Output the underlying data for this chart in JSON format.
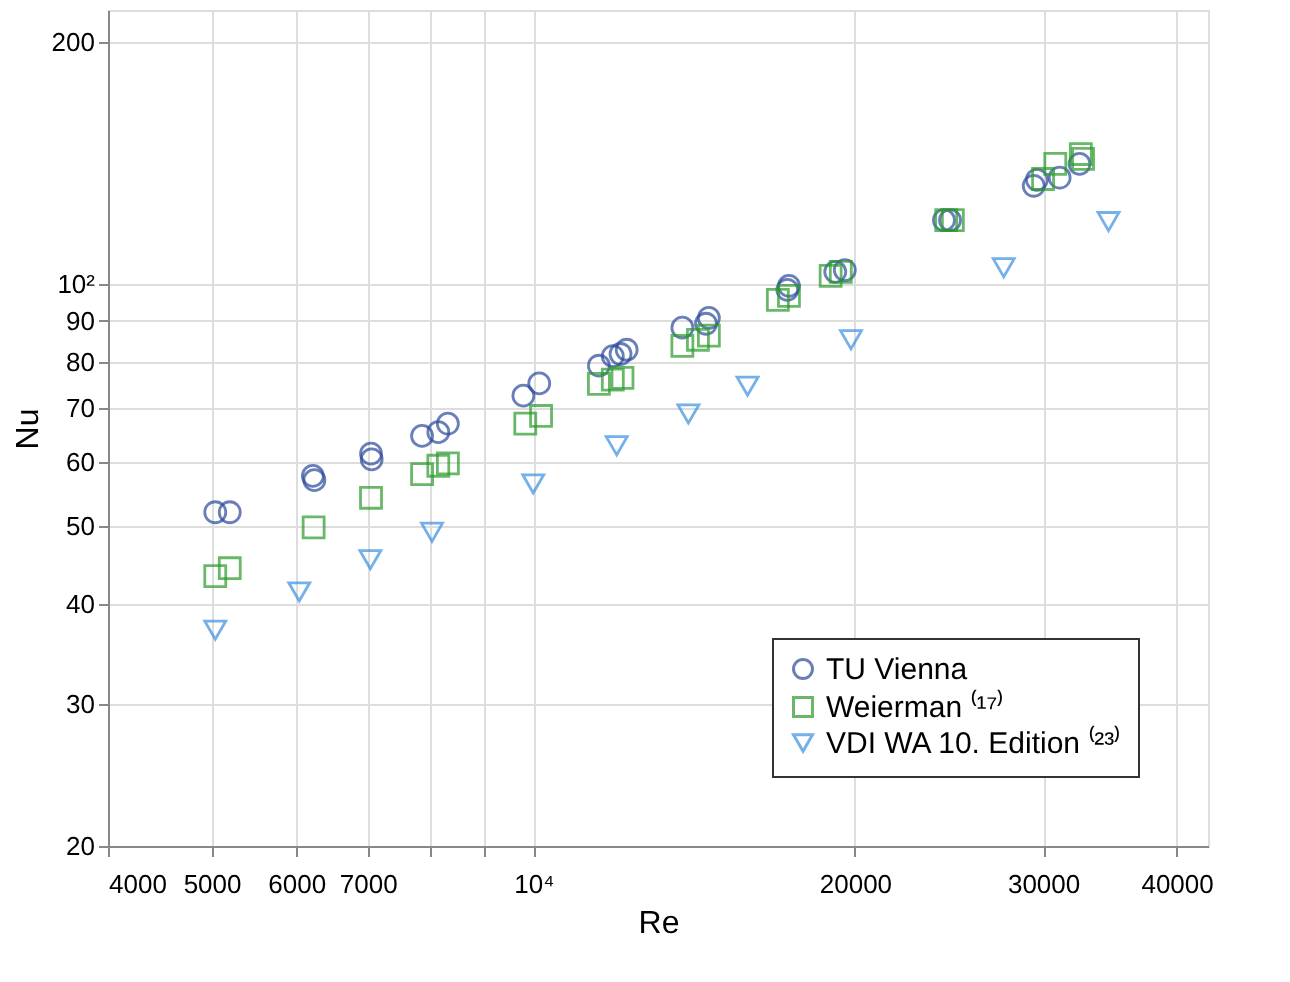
{
  "chart_data": {
    "type": "scatter",
    "xlabel": "Re",
    "ylabel": "Nu",
    "log": "xy",
    "grid": true,
    "legend": "bottom right",
    "xlim": [
      4000,
      42800
    ],
    "ylim": [
      20,
      219
    ],
    "xticks": [
      4000,
      5000,
      6000,
      7000,
      {
        "value": 8000,
        "label": null
      },
      {
        "value": 9000,
        "label": null
      },
      {
        "value": 10000,
        "label": "10⁴"
      },
      20000,
      30000,
      40000
    ],
    "yticks": [
      20,
      30,
      40,
      50,
      60,
      70,
      80,
      90,
      {
        "value": 100,
        "label": "10²"
      },
      200
    ],
    "series": [
      {
        "name": "TU Vienna",
        "color": "#2b4a9a",
        "marker": "circle",
        "x": [
          5040,
          5200,
          6220,
          6240,
          7050,
          7060,
          7870,
          8150,
          8320,
          9790,
          10130,
          11520,
          11870,
          12070,
          12230,
          13790,
          14510,
          14600,
          17290,
          17350,
          19170,
          19570,
          24230,
          24550,
          29400,
          29600,
          31090,
          32450
        ],
        "values": [
          52,
          52,
          57.7,
          57,
          61.5,
          60.5,
          64.7,
          65.4,
          67,
          72.6,
          75.2,
          79.1,
          81.3,
          81.8,
          82.8,
          88.2,
          89.2,
          90.7,
          98.3,
          99.4,
          103.5,
          104,
          120,
          120,
          132.4,
          134.7,
          135.5,
          141
        ]
      },
      {
        "name": "Weierman ⁽¹⁷⁾",
        "color": "#2a9a2a",
        "marker": "square",
        "x": [
          5040,
          5200,
          6230,
          7050,
          7870,
          8150,
          8320,
          9830,
          10170,
          11520,
          11870,
          12120,
          13790,
          14260,
          14600,
          16940,
          17350,
          18980,
          19400,
          24350,
          24700,
          30000,
          30800,
          32540,
          32700
        ],
        "values": [
          43.3,
          44.3,
          49.8,
          54.2,
          58,
          59.4,
          59.8,
          67,
          68.5,
          75.1,
          76,
          76.4,
          83.7,
          85.2,
          86.2,
          95.5,
          96.6,
          102.3,
          103.5,
          120,
          120,
          135,
          141,
          145,
          143
        ]
      },
      {
        "name": "VDI WA 10. Edition ⁽²³⁾",
        "color": "#3a8fe0",
        "marker": "triangle",
        "x": [
          5040,
          6040,
          7040,
          8040,
          10000,
          11970,
          13970,
          15870,
          19830,
          27560,
          34540
        ],
        "values": [
          37.1,
          41.4,
          45.4,
          49.1,
          56.4,
          62.9,
          68.9,
          74.6,
          85.2,
          104.7,
          119.5
        ]
      }
    ]
  }
}
